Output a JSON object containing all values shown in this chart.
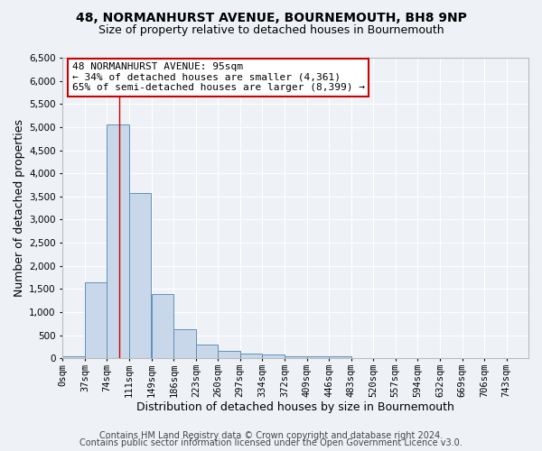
{
  "title1": "48, NORMANHURST AVENUE, BOURNEMOUTH, BH8 9NP",
  "title2": "Size of property relative to detached houses in Bournemouth",
  "xlabel": "Distribution of detached houses by size in Bournemouth",
  "ylabel": "Number of detached properties",
  "bar_color": "#c8d8ea",
  "bar_edge_color": "#6090b8",
  "bin_labels": [
    "0sqm",
    "37sqm",
    "74sqm",
    "111sqm",
    "149sqm",
    "186sqm",
    "223sqm",
    "260sqm",
    "297sqm",
    "334sqm",
    "372sqm",
    "409sqm",
    "446sqm",
    "483sqm",
    "520sqm",
    "557sqm",
    "594sqm",
    "632sqm",
    "669sqm",
    "706sqm",
    "743sqm"
  ],
  "bin_edges": [
    0,
    37,
    74,
    111,
    149,
    186,
    223,
    260,
    297,
    334,
    372,
    409,
    446,
    483,
    520,
    557,
    594,
    632,
    669,
    706,
    743
  ],
  "bar_heights": [
    50,
    1650,
    5050,
    3580,
    1390,
    620,
    290,
    155,
    110,
    75,
    50,
    35,
    40,
    0,
    0,
    0,
    0,
    0,
    0,
    0
  ],
  "red_line_x": 95,
  "annotation_title": "48 NORMANHURST AVENUE: 95sqm",
  "annotation_line1": "← 34% of detached houses are smaller (4,361)",
  "annotation_line2": "65% of semi-detached houses are larger (8,399) →",
  "ylim": [
    0,
    6500
  ],
  "yticks": [
    0,
    500,
    1000,
    1500,
    2000,
    2500,
    3000,
    3500,
    4000,
    4500,
    5000,
    5500,
    6000,
    6500
  ],
  "footer1": "Contains HM Land Registry data © Crown copyright and database right 2024.",
  "footer2": "Contains public sector information licensed under the Open Government Licence v3.0.",
  "bg_color": "#eef2f7",
  "plot_bg_color": "#eef2f7",
  "grid_color": "#ffffff",
  "annotation_box_facecolor": "#ffffff",
  "annotation_box_edge": "#cc0000",
  "title1_fontsize": 10,
  "title2_fontsize": 9,
  "axis_fontsize": 9,
  "tick_fontsize": 7.5,
  "annot_fontsize": 8,
  "footer_fontsize": 7
}
